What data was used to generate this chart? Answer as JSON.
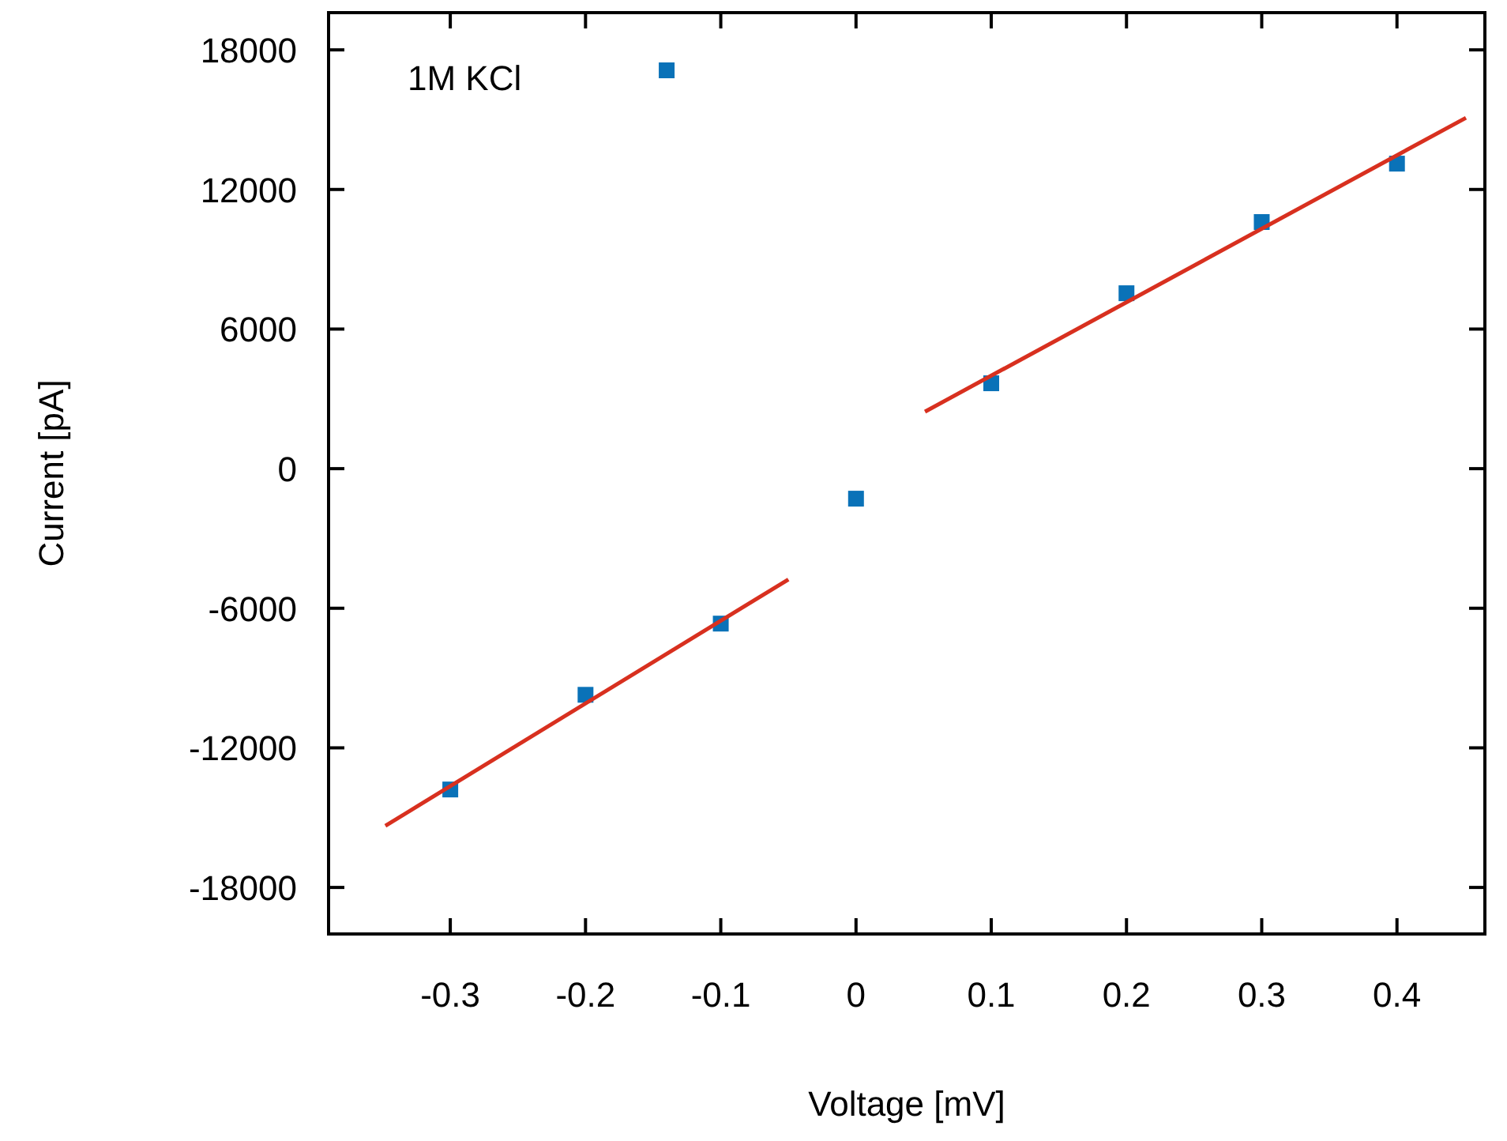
{
  "chart_data": {
    "type": "scatter",
    "xlabel": "Voltage [mV]",
    "ylabel": "Current [pA]",
    "annotations": [
      "1M KCl"
    ],
    "xlim": [
      -0.39,
      0.465
    ],
    "ylim": [
      -20000,
      19600
    ],
    "xticks": [
      -0.3,
      -0.2,
      -0.1,
      0,
      0.1,
      0.2,
      0.3,
      0.4
    ],
    "yticks": [
      -18000,
      -12000,
      -6000,
      0,
      6000,
      12000,
      18000
    ],
    "grid": false,
    "series": [
      {
        "marker": "square",
        "color": "#0a72b8",
        "x": [
          -0.3,
          -0.2,
          -0.1,
          0,
          0.1,
          0.2,
          0.3,
          0.4,
          -0.14
        ],
        "values": [
          -13790,
          -9720,
          -6660,
          -1290,
          3670,
          7540,
          10600,
          13110,
          17120
        ]
      },
      {
        "type": "line",
        "color": "#d8301f",
        "x": [
          -0.348,
          -0.05
        ],
        "values": [
          -15350,
          -4760
        ]
      },
      {
        "type": "line",
        "color": "#d8301f",
        "x": [
          0.051,
          0.451
        ],
        "values": [
          2450,
          15080
        ]
      }
    ]
  }
}
